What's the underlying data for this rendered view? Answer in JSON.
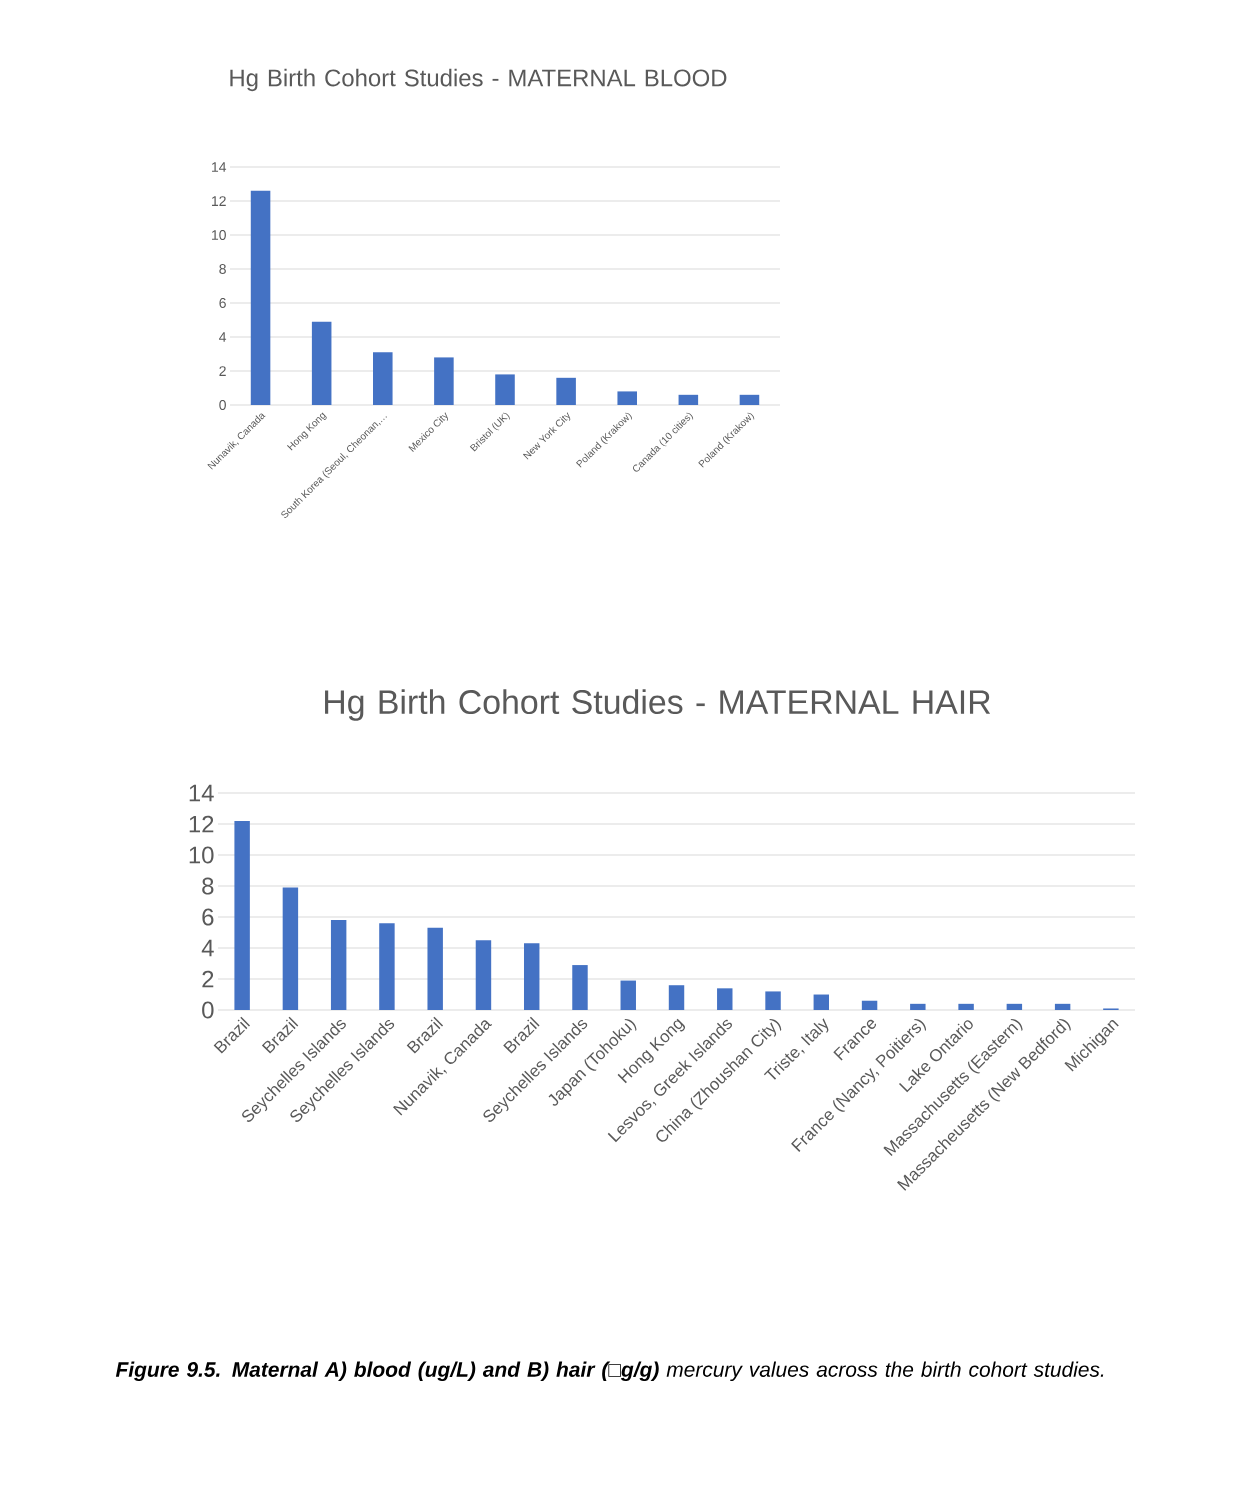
{
  "chart_data": [
    {
      "type": "bar",
      "title": "Hg Birth Cohort Studies - MATERNAL BLOOD",
      "categories": [
        "Nunavik, Canada",
        "Hong Kong",
        "South Korea (Seoul, Cheonan,…",
        "Mexico City",
        "Bristol (UK)",
        "New York City",
        "Poland (Krakow)",
        "Canada (10 cities)",
        "Poland (Krakow)"
      ],
      "values": [
        12.6,
        4.9,
        3.1,
        2.8,
        1.8,
        1.6,
        0.8,
        0.6,
        0.6
      ],
      "color": "#4472c4",
      "ylim": [
        0,
        14
      ],
      "yticks": [
        0,
        2,
        4,
        6,
        8,
        10,
        12,
        14
      ],
      "grid": "y"
    },
    {
      "type": "bar",
      "title": "Hg Birth Cohort Studies - MATERNAL HAIR",
      "categories": [
        "Brazil",
        "Brazil",
        "Seychelles Islands",
        "Seychelles Islands",
        "Brazil",
        "Nunavik, Canada",
        "Brazil",
        "Seychelles Islands",
        "Japan (Tohoku)",
        "Hong Kong",
        "Lesvos, Greek Islands",
        "China (Zhoushan City)",
        "Triste, Italy",
        "France",
        "France (Nancy, Poitiers)",
        "Lake Ontario",
        "Massachusetts (Eastern)",
        "Massacheusetts (New Bedford)",
        "Michigan"
      ],
      "values": [
        12.2,
        7.9,
        5.8,
        5.6,
        5.3,
        4.5,
        4.3,
        2.9,
        1.9,
        1.6,
        1.4,
        1.2,
        1.0,
        0.6,
        0.4,
        0.4,
        0.4,
        0.4,
        0.1
      ],
      "color": "#4472c4",
      "ylim": [
        0,
        14
      ],
      "yticks": [
        0,
        2,
        4,
        6,
        8,
        10,
        12,
        14
      ],
      "grid": "y",
      "annotations": [
        "**Figure 9.5. Maternal A) blood (ug/L) and B) hair (□g/g)** mercury values across the birth cohort studies."
      ]
    }
  ]
}
